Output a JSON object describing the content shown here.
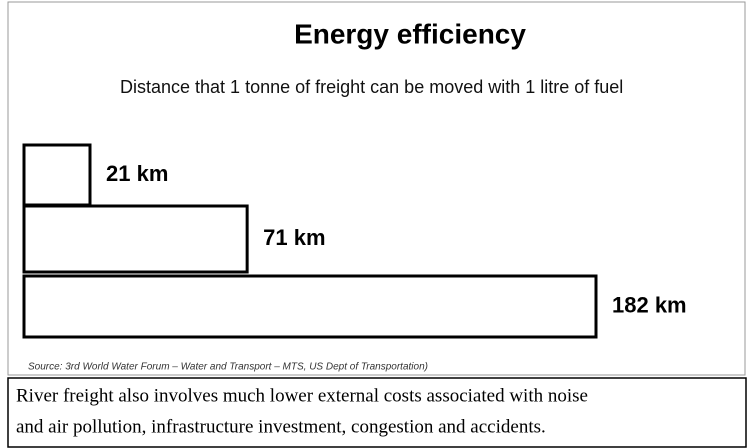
{
  "chart_data": {
    "type": "bar",
    "orientation": "horizontal",
    "title": "Energy efficiency",
    "subtitle": "Distance that 1 tonne of freight can be moved with 1 litre of fuel",
    "values": [
      21,
      71,
      182
    ],
    "value_labels": [
      "21 km",
      "71 km",
      "182 km"
    ],
    "color": "#ffffff",
    "source": "Source: 3rd World Water Forum – Water and Transport – MTS, US Dept of Transportation)",
    "note": [
      "River freight also involves much lower external costs associated with noise",
      "and air pollution, infrastructure investment, congestion and accidents."
    ]
  }
}
